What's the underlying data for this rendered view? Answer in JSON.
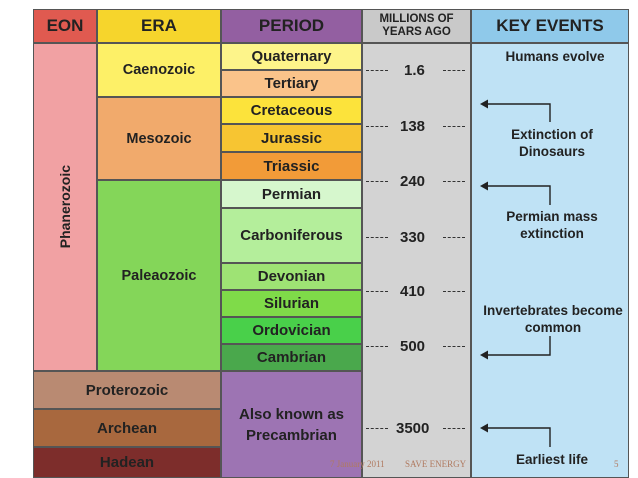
{
  "headers": {
    "eon": "EON",
    "era": "ERA",
    "period": "PERIOD",
    "millions": "MILLIONS OF YEARS AGO",
    "events": "KEY EVENTS"
  },
  "eons": {
    "phanerozoic": "Phanerozoic",
    "proterozoic": "Proterozoic",
    "archean": "Archean",
    "hadean": "Hadean"
  },
  "eras": {
    "caenozoic": "Caenozoic",
    "mesozoic": "Mesozoic",
    "paleaozoic": "Paleaozoic"
  },
  "periods": {
    "quaternary": "Quaternary",
    "tertiary": "Tertiary",
    "cretaceous": "Cretaceous",
    "jurassic": "Jurassic",
    "triassic": "Triassic",
    "permian": "Permian",
    "carboniferous": "Carboniferous",
    "devonian": "Devonian",
    "silurian": "Silurian",
    "ordovician": "Ordovician",
    "cambrian": "Cambrian",
    "precambrian": "Also known as Precambrian"
  },
  "ages": {
    "a1": "1.6",
    "a2": "138",
    "a3": "240",
    "a4": "330",
    "a5": "410",
    "a6": "500",
    "a7": "3500"
  },
  "events": {
    "humans": "Humans evolve",
    "dinosaurs": "Extinction of Dinosaurs",
    "permian": "Permian mass extinction",
    "invertebrates": "Invertebrates become common",
    "earliest": "Earliest life"
  },
  "footer": {
    "date": "7 January 2011",
    "title": "SAVE ENERGY",
    "page": "5"
  },
  "colors": {
    "eon_header": "#e05a50",
    "era_header": "#f6d52c",
    "period_header": "#935fa1",
    "millions_header": "#c9c9c9",
    "events_header": "#8fc9ea",
    "phanerozoic": "#f1a1a3",
    "caenozoic": "#fdf067",
    "mesozoic": "#f1aa6c",
    "paleaozoic": "#84d659",
    "precambrian": "#9d74b3",
    "proterozoic": "#b98a72",
    "archean": "#a8683e",
    "hadean": "#7d2d2b"
  }
}
